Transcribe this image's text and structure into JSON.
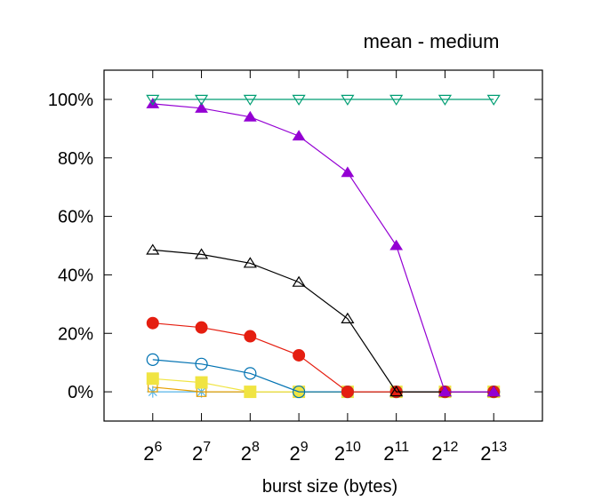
{
  "chart_data": {
    "type": "line",
    "title": "mean - medium",
    "xlabel": "burst size (bytes)",
    "ylabel": "",
    "x_exponents": [
      6,
      7,
      8,
      9,
      10,
      11,
      12,
      13
    ],
    "x_tick_base": "2",
    "xscale": "log2",
    "ylim": [
      -10,
      110
    ],
    "y_ticks": [
      0,
      20,
      40,
      60,
      80,
      100
    ],
    "y_tick_labels": [
      "0%",
      "20%",
      "40%",
      "60%",
      "80%",
      "100%"
    ],
    "grid": false,
    "legend": "none",
    "series": [
      {
        "color": "#009e73",
        "marker": "triangle-down-open",
        "values": [
          100,
          100,
          100,
          100,
          100,
          100,
          100,
          100
        ]
      },
      {
        "color": "#9400d3",
        "marker": "triangle-up-filled",
        "values": [
          98.5,
          97,
          94,
          87.5,
          75,
          50,
          0,
          0
        ]
      },
      {
        "color": "#000000",
        "marker": "triangle-up-open",
        "values": [
          48.5,
          47,
          44,
          37.5,
          25,
          0,
          0,
          0
        ]
      },
      {
        "color": "#e51e10",
        "marker": "circle-filled",
        "values": [
          23.5,
          22,
          19,
          12.5,
          0,
          0,
          0,
          0
        ]
      },
      {
        "color": "#0072b2",
        "marker": "circle-open",
        "values": [
          11,
          9.5,
          6.3,
          0,
          0,
          0,
          0,
          0
        ]
      },
      {
        "color": "#f0e442",
        "marker": "square-filled",
        "values": [
          4.5,
          3.2,
          0,
          0,
          0,
          0,
          0,
          0
        ]
      },
      {
        "color": "#e69f00",
        "marker": "square-open",
        "values": [
          1.6,
          0,
          0,
          0,
          0,
          0,
          0,
          0
        ]
      },
      {
        "color": "#56b4e9",
        "marker": "star",
        "values": [
          0,
          0,
          0,
          0,
          0,
          0,
          0,
          0
        ]
      }
    ]
  }
}
